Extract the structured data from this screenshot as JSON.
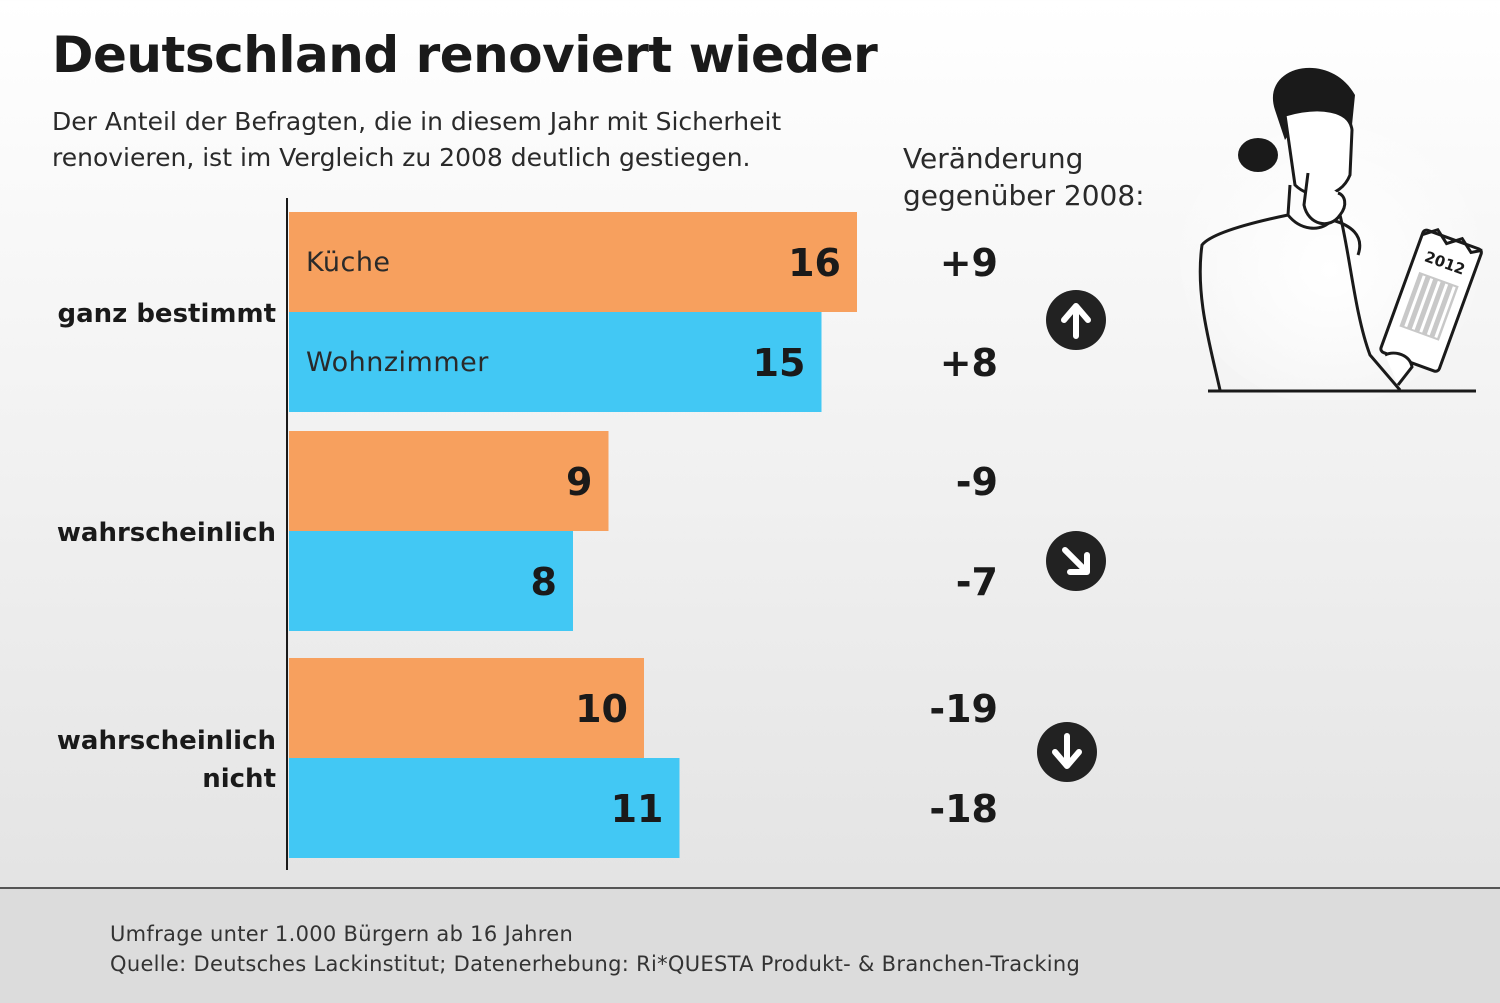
{
  "title": "Deutschland renoviert wieder",
  "subtitle_lines": [
    "Der Anteil der Befragten, die in diesem Jahr mit Sicherheit",
    "renovieren, ist im Vergleich zu 2008 deutlich gestiegen."
  ],
  "change_header_lines": [
    "Veränderung",
    "gegenüber 2008:"
  ],
  "colors": {
    "kueche": "#f7a05e",
    "wohnzimmer": "#42c8f4",
    "text_dark": "#1a1a1a",
    "arrow_circle": "#222222"
  },
  "chart_data": {
    "type": "bar",
    "orientation": "horizontal",
    "categories": [
      "ganz bestimmt",
      "wahrscheinlich",
      "wahrscheinlich nicht"
    ],
    "category_label_lines": [
      [
        "ganz bestimmt"
      ],
      [
        "wahrscheinlich"
      ],
      [
        "wahrscheinlich",
        "nicht"
      ]
    ],
    "series": [
      {
        "name": "Küche",
        "values": [
          16,
          9,
          10
        ],
        "changes": [
          "+9",
          "-9",
          "-19"
        ]
      },
      {
        "name": "Wohnzimmer",
        "values": [
          15,
          8,
          11
        ],
        "changes": [
          "+8",
          "-7",
          "-18"
        ]
      }
    ],
    "trend_icons": [
      "arrow-up-icon",
      "arrow-down-right-icon",
      "arrow-down-icon"
    ],
    "xlim": [
      0,
      16
    ]
  },
  "illustration": {
    "calendar_label": "2012"
  },
  "footer_lines": [
    "Umfrage unter 1.000 Bürgern ab 16 Jahren",
    "Quelle: Deutsches Lackinstitut; Datenerhebung: Ri*QUESTA Produkt- & Branchen-Tracking"
  ]
}
